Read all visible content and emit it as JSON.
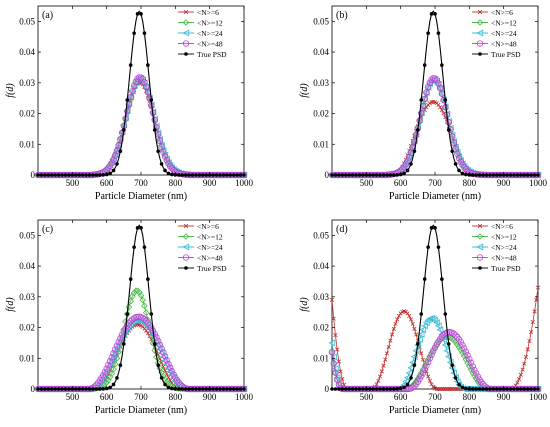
{
  "chart_data": [
    {
      "type": "line",
      "panel_label": "(a)",
      "ylabel": "f(d)",
      "xlabel": "Particle Diameter (nm)",
      "xlim": [
        400,
        1000
      ],
      "ylim": [
        0,
        0.055
      ],
      "x_ticks": [
        500,
        600,
        700,
        800,
        900,
        1000
      ],
      "y_ticks": [
        0.05,
        0.04,
        0.03,
        0.02,
        0.01,
        0
      ],
      "y_tick_labels": [
        "0.05",
        "0.04",
        "0.03",
        "0.02",
        "0.01",
        "0"
      ],
      "legend_position": "top-right",
      "series": [
        {
          "name": "<N>=6",
          "marker": "x",
          "shape": "gauss",
          "mu": 697,
          "sigma": 42,
          "amp": 0.03,
          "xmin": 560,
          "xmax": 840
        },
        {
          "name": "<N>=12",
          "marker": "diamond",
          "shape": "gauss",
          "mu": 697,
          "sigma": 41,
          "amp": 0.0312,
          "xmin": 560,
          "xmax": 840
        },
        {
          "name": "<N>=24",
          "marker": "triangle-left",
          "shape": "gauss",
          "mu": 697,
          "sigma": 41,
          "amp": 0.0315,
          "xmin": 560,
          "xmax": 840
        },
        {
          "name": "<N>=48",
          "marker": "circle",
          "shape": "gauss",
          "mu": 697,
          "sigma": 40,
          "amp": 0.0318,
          "xmin": 560,
          "xmax": 840
        },
        {
          "name": "True PSD",
          "marker": "dot",
          "shape": "gauss",
          "mu": 695,
          "sigma": 28,
          "amp": 0.0533,
          "xmin": 400,
          "xmax": 1000
        }
      ]
    },
    {
      "type": "line",
      "panel_label": "(b)",
      "ylabel": "f(d)",
      "xlabel": "Particle Diameter (nm)",
      "xlim": [
        400,
        1000
      ],
      "ylim": [
        0,
        0.055
      ],
      "x_ticks": [
        500,
        600,
        700,
        800,
        900,
        1000
      ],
      "y_ticks": [
        0.05,
        0.04,
        0.03,
        0.02,
        0.01,
        0
      ],
      "y_tick_labels": [
        "0.05",
        "0.04",
        "0.03",
        "0.02",
        "0.01",
        "0"
      ],
      "legend_position": "top-right",
      "series": [
        {
          "name": "<N>=6",
          "marker": "x",
          "shape": "cos",
          "mu": 695,
          "halfwidth": 115,
          "amp": 0.0238
        },
        {
          "name": "<N>=12",
          "marker": "diamond",
          "shape": "gauss",
          "mu": 697,
          "sigma": 40,
          "amp": 0.031,
          "xmin": 560,
          "xmax": 840
        },
        {
          "name": "<N>=24",
          "marker": "triangle-left",
          "shape": "gauss",
          "mu": 697,
          "sigma": 40,
          "amp": 0.0312,
          "xmin": 560,
          "xmax": 840
        },
        {
          "name": "<N>=48",
          "marker": "circle",
          "shape": "gauss",
          "mu": 697,
          "sigma": 39,
          "amp": 0.0315,
          "xmin": 560,
          "xmax": 840
        },
        {
          "name": "True PSD",
          "marker": "dot",
          "shape": "gauss",
          "mu": 695,
          "sigma": 28,
          "amp": 0.0533,
          "xmin": 400,
          "xmax": 1000
        }
      ]
    },
    {
      "type": "line",
      "panel_label": "(c)",
      "ylabel": "f(d)",
      "xlabel": "Particle Diameter (nm)",
      "xlim": [
        400,
        1000
      ],
      "ylim": [
        0,
        0.055
      ],
      "x_ticks": [
        500,
        600,
        700,
        800,
        900,
        1000
      ],
      "y_ticks": [
        0.05,
        0.04,
        0.03,
        0.02,
        0.01,
        0
      ],
      "y_tick_labels": [
        "0.05",
        "0.04",
        "0.03",
        "0.02",
        "0.01",
        "0"
      ],
      "legend_position": "top-right",
      "series": [
        {
          "name": "<N>=6",
          "marker": "x",
          "shape": "cos",
          "mu": 690,
          "halfwidth": 125,
          "amp": 0.021
        },
        {
          "name": "<N>=12",
          "marker": "diamond",
          "shape": "gauss",
          "mu": 688,
          "sigma": 38,
          "amp": 0.032,
          "xmin": 560,
          "xmax": 830
        },
        {
          "name": "<N>=24",
          "marker": "triangle-left",
          "shape": "cos",
          "mu": 692,
          "halfwidth": 140,
          "amp": 0.0225
        },
        {
          "name": "<N>=48",
          "marker": "circle",
          "shape": "cos",
          "mu": 693,
          "halfwidth": 145,
          "amp": 0.0235
        },
        {
          "name": "True PSD",
          "marker": "dot",
          "shape": "gauss",
          "mu": 695,
          "sigma": 28,
          "amp": 0.0533,
          "xmin": 400,
          "xmax": 1000
        }
      ]
    },
    {
      "type": "line",
      "panel_label": "(d)",
      "ylabel": "f(d)",
      "xlabel": "Particle Diameter (nm)",
      "xlim": [
        400,
        1000
      ],
      "ylim": [
        0,
        0.055
      ],
      "x_ticks": [
        500,
        600,
        700,
        800,
        900,
        1000
      ],
      "y_ticks": [
        0.05,
        0.04,
        0.03,
        0.02,
        0.01,
        0
      ],
      "y_tick_labels": [
        "0.05",
        "0.04",
        "0.03",
        "0.02",
        "0.01",
        "0"
      ],
      "legend_position": "top-right",
      "series": [
        {
          "name": "<N>=6",
          "marker": "x",
          "shape": "multi",
          "parts": [
            {
              "kind": "cos",
              "mu": 610,
              "halfwidth": 95,
              "amp": 0.0253
            },
            {
              "kind": "edge",
              "at": 400,
              "width": 45,
              "amp": 0.029
            },
            {
              "kind": "edge",
              "at": 1000,
              "width": 80,
              "amp": 0.033
            }
          ]
        },
        {
          "name": "<N>=12",
          "marker": "diamond",
          "shape": "multi",
          "parts": [
            {
              "kind": "cos",
              "mu": 735,
              "halfwidth": 120,
              "amp": 0.017
            },
            {
              "kind": "edge",
              "at": 400,
              "width": 30,
              "amp": 0.012
            }
          ]
        },
        {
          "name": "<N>=24",
          "marker": "triangle-left",
          "shape": "multi",
          "parts": [
            {
              "kind": "cos",
              "mu": 690,
              "halfwidth": 95,
              "amp": 0.023
            },
            {
              "kind": "edge",
              "at": 400,
              "width": 30,
              "amp": 0.015
            }
          ]
        },
        {
          "name": "<N>=48",
          "marker": "circle",
          "shape": "multi",
          "parts": [
            {
              "kind": "cos",
              "mu": 742,
              "halfwidth": 120,
              "amp": 0.0185
            },
            {
              "kind": "edge",
              "at": 400,
              "width": 30,
              "amp": 0.012
            }
          ]
        },
        {
          "name": "True PSD",
          "marker": "dot",
          "shape": "gauss",
          "mu": 695,
          "sigma": 28,
          "amp": 0.0533,
          "xmin": 400,
          "xmax": 1000
        }
      ]
    }
  ],
  "styles": {
    "<N>=6": {
      "color": "#c0302e",
      "fill": "#f4b4b4"
    },
    "<N>=12": {
      "color": "#3cb43c",
      "fill": "#bfe8bf"
    },
    "<N>=24": {
      "color": "#2ab6ce",
      "fill": "#a8e6f0"
    },
    "<N>=48": {
      "color": "#b43cd2",
      "fill": "#e4b4f0"
    },
    "True PSD": {
      "color": "#000000",
      "fill": "#000000"
    }
  }
}
